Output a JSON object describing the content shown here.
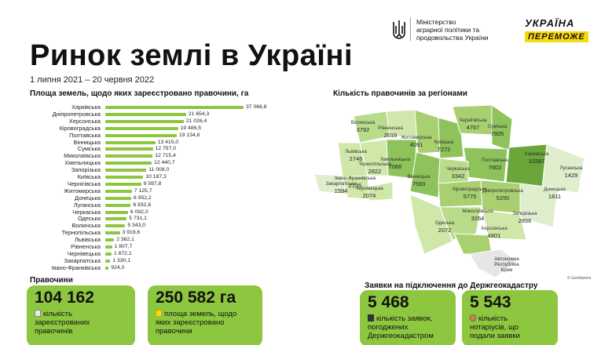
{
  "header": {
    "title": "Ринок землі в Україні",
    "dates": "1 липня 2021 – 20 червня 2022",
    "ministry": [
      "Міністерство",
      "аграрної політики та",
      "продовольства України"
    ],
    "brand_top": "УКРАЇНА",
    "brand_bottom": "ПЕРЕМОЖЕ"
  },
  "chart_data": [
    {
      "type": "bar",
      "title": "Площа земель, щодо яких зареєстровано правочини, га",
      "categories": [
        "Харківська",
        "Дніпропетровська",
        "Херсонська",
        "Кіровоградська",
        "Полтавська",
        "Вінницька",
        "Сумська",
        "Миколаївська",
        "Хмельницька",
        "Запорізька",
        "Київська",
        "Чернігівська",
        "Житомирська",
        "Донецька",
        "Луганська",
        "Черкаська",
        "Одеська",
        "Волинська",
        "Тернопільська",
        "Львівська",
        "Рівненська",
        "Чернівецька",
        "Закарпатська",
        "Івано-Франківська"
      ],
      "values": [
        37066.8,
        21654.3,
        21026.4,
        19486.5,
        19134.6,
        13415.0,
        12757.0,
        12715.4,
        12440.7,
        11008.0,
        10187.3,
        9597.8,
        7125.7,
        6952.2,
        6832.6,
        6092.0,
        5731.1,
        5343.0,
        3919.6,
        2362.1,
        1807.7,
        1672.1,
        1330.1,
        924.0
      ],
      "value_labels": [
        "37 066,8",
        "21 654,3",
        "21 026,4",
        "19 486,5",
        "19 134,6",
        "13 415,0",
        "12 757,0",
        "12 715,4",
        "12 440,7",
        "11 008,0",
        "10 187,3",
        "9 597,8",
        "7 125,7",
        "6 952,2",
        "6 832,6",
        "6 092,0",
        "5 731,1",
        "5 343,0",
        "3 919,6",
        "2 362,1",
        "1 807,7",
        "1 672,1",
        "1 330,1",
        "924,0"
      ],
      "bar_color": "#8dc63f"
    },
    {
      "type": "heatmap",
      "title": "Кількість правочинів за регіонами",
      "regions": [
        {
          "name": "Волинська",
          "value": 3792
        },
        {
          "name": "Рівненська",
          "value": 2016
        },
        {
          "name": "Житомирська",
          "value": 4091
        },
        {
          "name": "Чернігівська",
          "value": 4767
        },
        {
          "name": "Сумська",
          "value": 7605
        },
        {
          "name": "Київська",
          "value": 7272
        },
        {
          "name": "Львівська",
          "value": 2746
        },
        {
          "name": "Хмельницька",
          "value": 7066
        },
        {
          "name": "Тернопільська",
          "value": 2822
        },
        {
          "name": "Полтавська",
          "value": 7602
        },
        {
          "name": "Харківська",
          "value": 10387
        },
        {
          "name": "Луганська",
          "value": 1429
        },
        {
          "name": "Черкаська",
          "value": 3342
        },
        {
          "name": "Вінницька",
          "value": 7593
        },
        {
          "name": "Івано-Франківська",
          "value": 2135
        },
        {
          "name": "Закарпатська",
          "value": 1594
        },
        {
          "name": "Чернівецька",
          "value": 2074
        },
        {
          "name": "Кіровоградська",
          "value": 5775
        },
        {
          "name": "Дніпропетровська",
          "value": 5250
        },
        {
          "name": "Донецька",
          "value": 1811
        },
        {
          "name": "Миколаївська",
          "value": 3264
        },
        {
          "name": "Одеська",
          "value": 2072
        },
        {
          "name": "Запорізька",
          "value": 2856
        },
        {
          "name": "Херсонська",
          "value": 4801
        }
      ],
      "extra_label": [
        "Автономна",
        "Республіка",
        "Крим"
      ],
      "credit": "© GeoNames"
    }
  ],
  "cards_section": "Правочини",
  "cards": [
    {
      "number": "104 162",
      "desc": [
        "кількість",
        "зареєстрованих",
        "правочинів"
      ]
    },
    {
      "number": "250 582 га",
      "desc": [
        "площа земель, щодо",
        "яких зареєстровано",
        "правочини"
      ]
    }
  ],
  "cadastre_section": "Заявки на підключення до Держгеокадастру",
  "cadastre_cards": [
    {
      "number": "5 468",
      "desc": [
        "кількість заявок,",
        "погоджених",
        "Держгеокадастром"
      ]
    },
    {
      "number": "5 543",
      "desc": [
        "кількість",
        "нотаріусів, що",
        "подали заявки"
      ]
    }
  ],
  "colors": {
    "accent": "#8dc63f",
    "brand_yellow": "#f7d90f"
  }
}
